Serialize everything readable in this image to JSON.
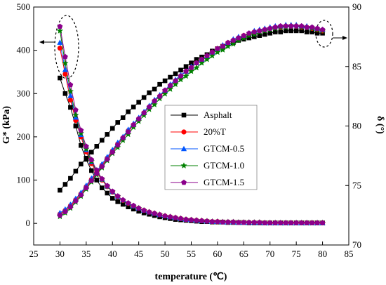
{
  "chart_data": {
    "type": "line",
    "xlabel": "temperature (℃)",
    "ylabel_left": "G* (kPa)",
    "ylabel_right": "δ (°)",
    "xlim": [
      25,
      85
    ],
    "ylim_left": [
      -50,
      500
    ],
    "ylim_right": [
      70,
      90
    ],
    "xticks": [
      25,
      30,
      35,
      40,
      45,
      50,
      55,
      60,
      65,
      70,
      75,
      80,
      85
    ],
    "yticks_left": [
      0,
      100,
      200,
      300,
      400,
      500
    ],
    "yticks_right": [
      70,
      75,
      80,
      85,
      90
    ],
    "legend_position": "center",
    "x": [
      30,
      31,
      32,
      33,
      34,
      35,
      36,
      37,
      38,
      39,
      40,
      41,
      42,
      43,
      44,
      45,
      46,
      47,
      48,
      49,
      50,
      51,
      52,
      53,
      54,
      55,
      56,
      57,
      58,
      59,
      60,
      61,
      62,
      63,
      64,
      65,
      66,
      67,
      68,
      69,
      70,
      71,
      72,
      73,
      74,
      75,
      76,
      77,
      78,
      79,
      80
    ],
    "series": [
      {
        "name": "Asphalt",
        "color": "#000000",
        "marker": "square",
        "g_star": [
          336,
          300,
          268,
          225,
          180,
          148,
          122,
          100,
          82,
          70,
          58,
          50,
          44,
          38,
          33,
          28,
          24,
          21,
          18,
          15,
          13,
          11,
          9,
          8,
          7,
          6,
          5,
          4,
          4,
          3,
          3,
          3,
          2,
          2,
          2,
          2,
          1,
          1,
          1,
          1,
          1,
          1,
          1,
          1,
          1,
          1,
          1,
          1,
          1,
          1,
          1
        ],
        "delta": [
          74.6,
          75.1,
          75.6,
          76.2,
          76.8,
          77.3,
          77.8,
          78.3,
          78.8,
          79.3,
          79.8,
          80.3,
          80.7,
          81.2,
          81.6,
          82.0,
          82.4,
          82.8,
          83.1,
          83.5,
          83.8,
          84.1,
          84.4,
          84.7,
          85.0,
          85.3,
          85.6,
          85.8,
          86.0,
          86.3,
          86.5,
          86.7,
          86.9,
          87.0,
          87.2,
          87.3,
          87.4,
          87.5,
          87.6,
          87.7,
          87.8,
          87.9,
          87.9,
          88.0,
          88.0,
          88.0,
          88.0,
          87.9,
          87.9,
          87.8,
          87.8
        ]
      },
      {
        "name": "20%T",
        "color": "#ff0000",
        "marker": "circle",
        "g_star": [
          405,
          345,
          285,
          238,
          200,
          165,
          138,
          118,
          100,
          85,
          72,
          61,
          53,
          46,
          40,
          35,
          30,
          26,
          23,
          20,
          17,
          15,
          13,
          11,
          9,
          8,
          7,
          6,
          5,
          4,
          4,
          3,
          3,
          3,
          2,
          2,
          2,
          2,
          2,
          1,
          1,
          1,
          1,
          1,
          1,
          1,
          1,
          1,
          1,
          1,
          1
        ],
        "delta": [
          72.6,
          72.9,
          73.3,
          73.8,
          74.3,
          74.9,
          75.5,
          76.1,
          76.7,
          77.3,
          77.9,
          78.5,
          79.0,
          79.6,
          80.1,
          80.6,
          81.1,
          81.6,
          82.1,
          82.5,
          82.9,
          83.4,
          83.8,
          84.2,
          84.6,
          84.9,
          85.3,
          85.6,
          85.9,
          86.2,
          86.5,
          86.7,
          87.0,
          87.2,
          87.4,
          87.6,
          87.7,
          87.9,
          88.0,
          88.1,
          88.2,
          88.3,
          88.3,
          88.4,
          88.4,
          88.4,
          88.3,
          88.3,
          88.2,
          88.1,
          88.0
        ]
      },
      {
        "name": "GTCM-0.5",
        "color": "#0055ff",
        "marker": "triangle",
        "g_star": [
          418,
          355,
          295,
          245,
          205,
          170,
          142,
          120,
          102,
          86,
          73,
          62,
          54,
          47,
          40,
          35,
          30,
          26,
          23,
          20,
          17,
          15,
          13,
          11,
          9,
          8,
          7,
          6,
          5,
          4,
          4,
          3,
          3,
          3,
          2,
          2,
          2,
          2,
          2,
          1,
          1,
          1,
          1,
          1,
          1,
          1,
          1,
          1,
          1,
          1,
          1
        ],
        "delta": [
          72.7,
          73.0,
          73.4,
          73.9,
          74.4,
          75.0,
          75.6,
          76.2,
          76.8,
          77.4,
          78.0,
          78.6,
          79.1,
          79.7,
          80.2,
          80.7,
          81.2,
          81.7,
          82.2,
          82.6,
          83.0,
          83.5,
          83.9,
          84.3,
          84.6,
          85.0,
          85.3,
          85.6,
          85.9,
          86.2,
          86.5,
          86.8,
          87.0,
          87.3,
          87.5,
          87.6,
          87.8,
          88.0,
          88.1,
          88.2,
          88.3,
          88.4,
          88.4,
          88.5,
          88.5,
          88.5,
          88.4,
          88.4,
          88.3,
          88.2,
          88.1
        ]
      },
      {
        "name": "GTCM-1.0",
        "color": "#008000",
        "marker": "star",
        "g_star": [
          445,
          370,
          305,
          250,
          208,
          172,
          143,
          121,
          102,
          86,
          73,
          62,
          53,
          46,
          40,
          35,
          30,
          26,
          23,
          20,
          17,
          15,
          13,
          11,
          9,
          8,
          7,
          6,
          5,
          4,
          4,
          3,
          3,
          3,
          2,
          2,
          2,
          2,
          2,
          1,
          1,
          1,
          1,
          1,
          1,
          1,
          1,
          1,
          1,
          1,
          1
        ],
        "delta": [
          72.4,
          72.7,
          73.1,
          73.6,
          74.1,
          74.7,
          75.3,
          75.9,
          76.5,
          77.1,
          77.7,
          78.2,
          78.8,
          79.3,
          79.9,
          80.4,
          80.9,
          81.4,
          81.8,
          82.3,
          82.7,
          83.1,
          83.5,
          83.9,
          84.2,
          84.6,
          84.9,
          85.3,
          85.6,
          85.9,
          86.2,
          86.4,
          86.7,
          86.9,
          87.2,
          87.4,
          87.6,
          87.7,
          87.9,
          88.0,
          88.1,
          88.2,
          88.3,
          88.3,
          88.4,
          88.4,
          88.3,
          88.3,
          88.2,
          88.1,
          88.0
        ]
      },
      {
        "name": "GTCM-1.5",
        "color": "#8b008b",
        "marker": "pentagon",
        "g_star": [
          455,
          385,
          320,
          262,
          215,
          178,
          147,
          123,
          103,
          87,
          74,
          63,
          54,
          47,
          41,
          35,
          30,
          26,
          23,
          20,
          17,
          15,
          13,
          11,
          9,
          8,
          7,
          6,
          5,
          4,
          4,
          3,
          3,
          3,
          2,
          2,
          2,
          2,
          2,
          1,
          1,
          1,
          1,
          1,
          1,
          1,
          1,
          1,
          1,
          1,
          1
        ],
        "delta": [
          72.5,
          72.8,
          73.2,
          73.7,
          74.2,
          74.8,
          75.4,
          76.0,
          76.6,
          77.2,
          77.8,
          78.4,
          79.0,
          79.5,
          80.1,
          80.6,
          81.1,
          81.6,
          82.1,
          82.5,
          83.0,
          83.4,
          83.8,
          84.2,
          84.6,
          84.9,
          85.3,
          85.6,
          85.9,
          86.2,
          86.5,
          86.7,
          87.0,
          87.2,
          87.4,
          87.6,
          87.8,
          87.9,
          88.0,
          88.1,
          88.2,
          88.3,
          88.4,
          88.4,
          88.4,
          88.4,
          88.4,
          88.3,
          88.3,
          88.2,
          88.1
        ]
      }
    ]
  }
}
